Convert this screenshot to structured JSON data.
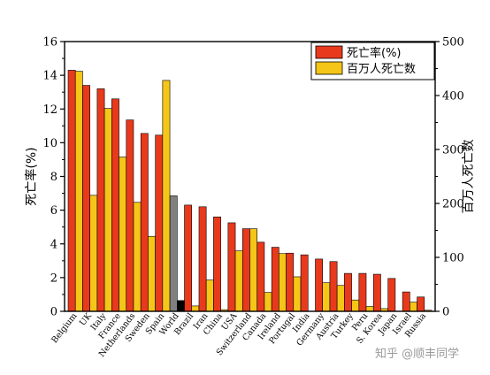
{
  "chart_data": {
    "type": "bar",
    "categories": [
      "Belgium",
      "UK",
      "Italy",
      "France",
      "Netherlands",
      "Sweden",
      "Spain",
      "World",
      "Brazil",
      "Iran",
      "China",
      "USA",
      "Switzerland",
      "Canada",
      "Ireland",
      "Portugal",
      "India",
      "Germany",
      "Austria",
      "Turkey",
      "Peru",
      "S. Korea",
      "Japan",
      "Israel",
      "Russia"
    ],
    "series": [
      {
        "name": "死亡率(%)",
        "axis": "left",
        "color": "#e8391d",
        "values": [
          14.3,
          13.4,
          13.2,
          12.6,
          11.35,
          10.55,
          10.45,
          6.85,
          6.3,
          6.2,
          5.6,
          5.25,
          4.9,
          4.1,
          3.8,
          3.45,
          3.35,
          3.1,
          2.95,
          2.25,
          2.25,
          2.2,
          1.95,
          1.15,
          0.85
        ]
      },
      {
        "name": "百万人死亡数",
        "axis": "right",
        "color": "#f5c518",
        "values": [
          445,
          215,
          376,
          286,
          202,
          139,
          428,
          20,
          10,
          58,
          3,
          112,
          153,
          35,
          107,
          64,
          0,
          53,
          48,
          21,
          9,
          5,
          0,
          17,
          2
        ]
      }
    ],
    "highlight": {
      "category": "World",
      "left_color": "#808080",
      "right_color": "#000000"
    },
    "xlabel": "",
    "ylabel": "死亡率(%)",
    "y2label": "百万人死亡数",
    "ylim": [
      0,
      16
    ],
    "y2lim": [
      0,
      500
    ],
    "yticks": [
      0,
      2,
      4,
      6,
      8,
      10,
      12,
      14,
      16
    ],
    "y2ticks": [
      0,
      100,
      200,
      300,
      400,
      500
    ],
    "legend": {
      "placement": "top-right",
      "entries": [
        "死亡率(%)",
        "百万人死亡数"
      ]
    },
    "grid": false
  },
  "watermark": "知乎 @顺丰同学"
}
